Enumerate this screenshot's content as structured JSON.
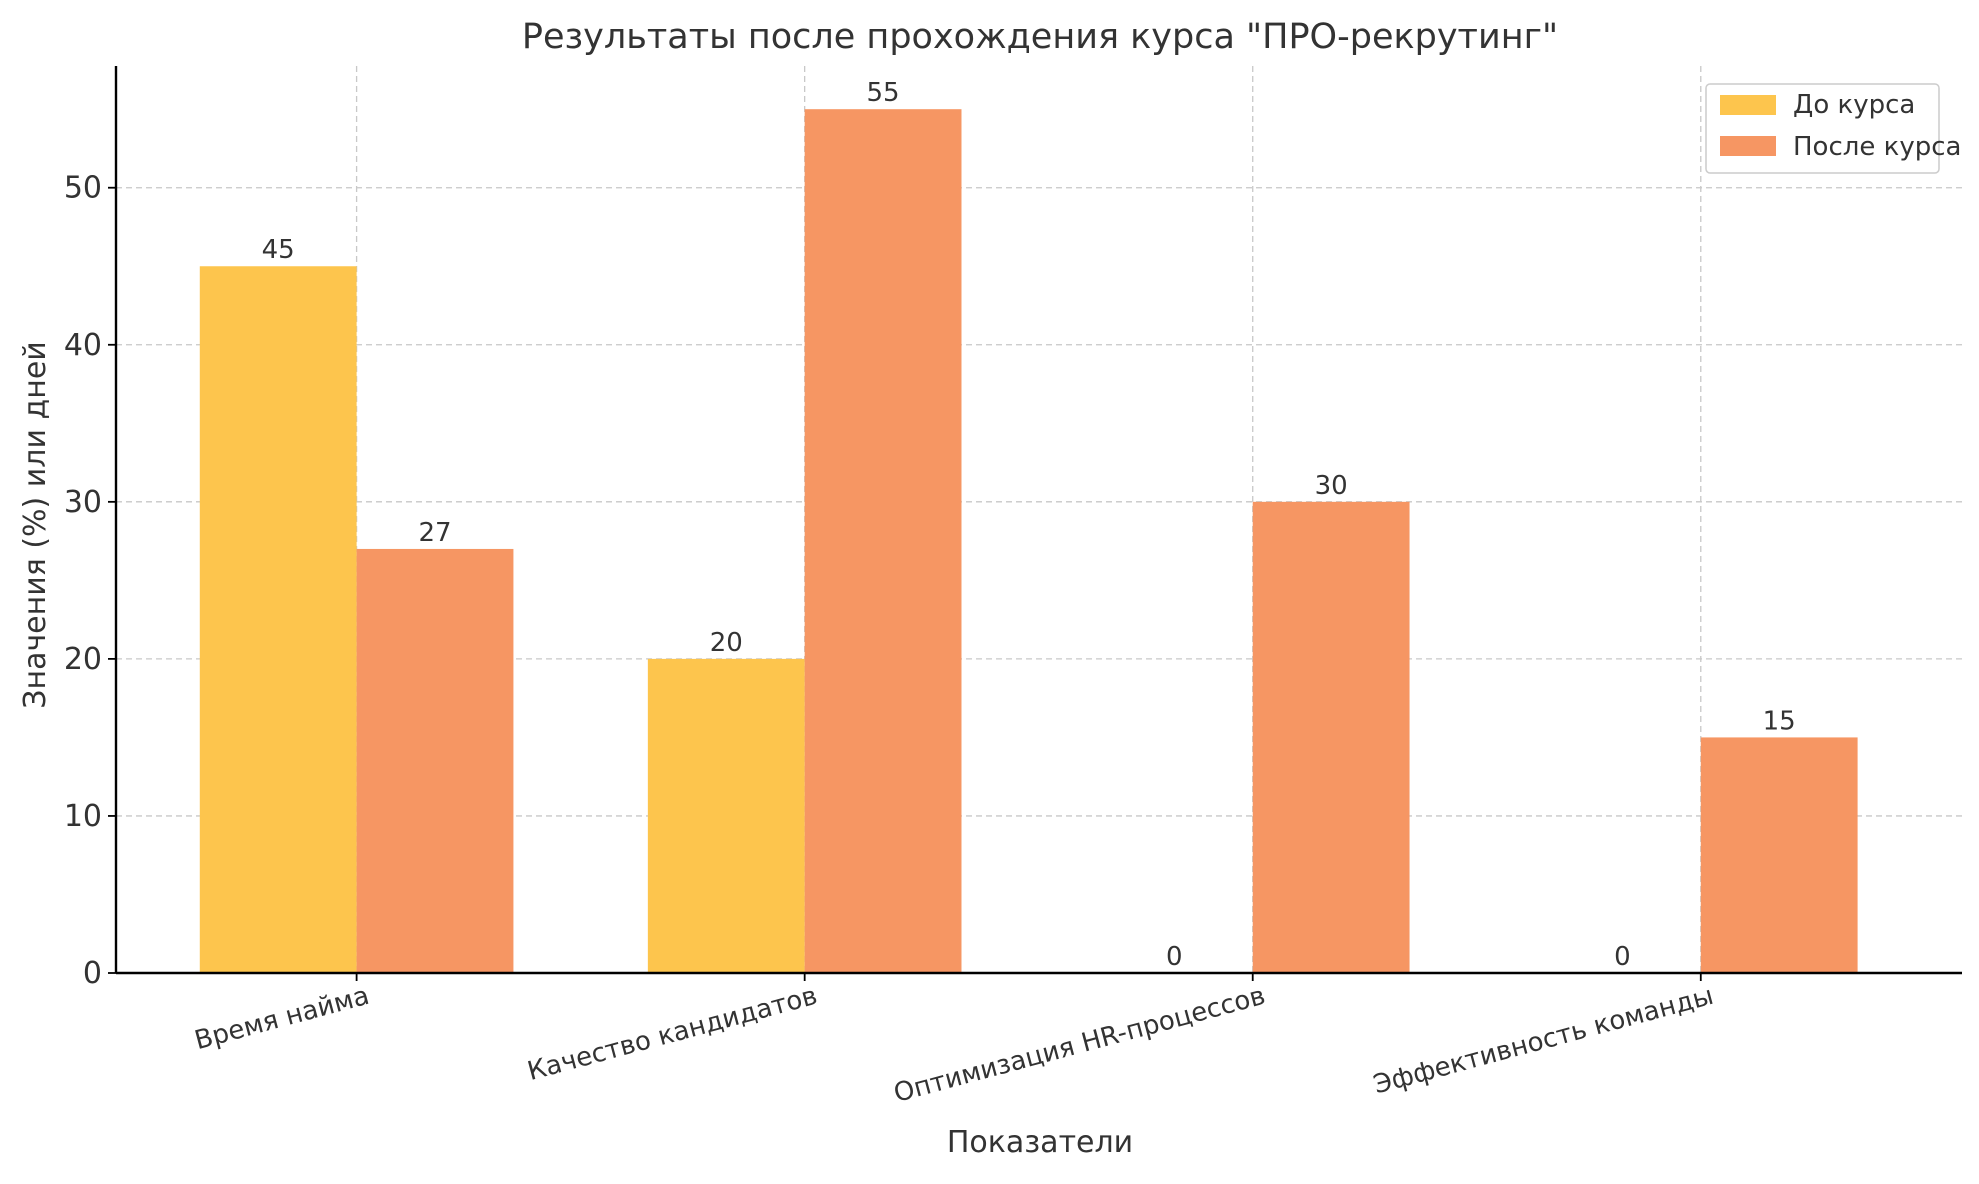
{
  "chart_data": {
    "type": "bar",
    "title": "Результаты после прохождения курса \"ПРО-рекрутинг\"",
    "xlabel": "Показатели",
    "ylabel": "Значения (%) или дней",
    "categories": [
      "Время найма",
      "Качество кандидатов",
      "Оптимизация HR-процессов",
      "Эффективность команды"
    ],
    "series": [
      {
        "name": "До курса",
        "values": [
          45,
          20,
          0,
          0
        ],
        "color": "#FDC54D"
      },
      {
        "name": "После курса",
        "values": [
          27,
          55,
          30,
          15
        ],
        "color": "#F69663"
      }
    ],
    "ylim": [
      0,
      57.75
    ],
    "yticks": [
      0,
      10,
      20,
      30,
      40,
      50
    ],
    "grid": true,
    "legend_position": "top-right",
    "data_labels": true
  }
}
